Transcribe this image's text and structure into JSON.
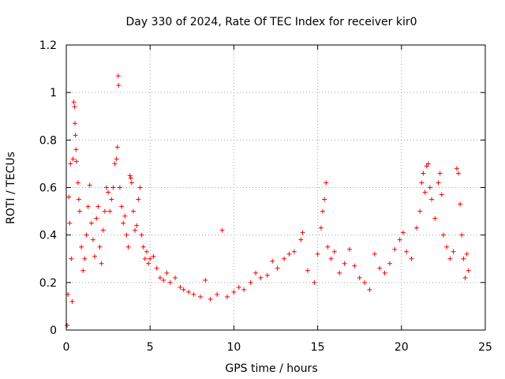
{
  "chart_data": {
    "type": "scatter",
    "title": "Day 330 of 2024, Rate Of TEC Index for receiver kir0",
    "xlabel": "GPS time / hours",
    "ylabel": "ROTI / TECUs",
    "xlim": [
      0,
      25
    ],
    "ylim": [
      0,
      1.2
    ],
    "xticks": [
      0,
      5,
      10,
      15,
      20,
      25
    ],
    "xtick_labels": [
      "0",
      "5",
      "10",
      "15",
      "20",
      "25"
    ],
    "yticks": [
      0,
      0.2,
      0.4,
      0.6,
      0.8,
      1,
      1.2
    ],
    "ytick_labels": [
      "0",
      "0.2",
      "0.4",
      "0.6",
      "0.8",
      "1",
      "1.2"
    ],
    "grid": true,
    "marker": "+",
    "series": [
      {
        "color": "#ff0000",
        "points": [
          [
            0.05,
            0.02
          ],
          [
            0.1,
            0.15
          ],
          [
            0.15,
            0.56
          ],
          [
            0.2,
            0.45
          ],
          [
            0.25,
            0.7
          ],
          [
            0.3,
            0.3
          ],
          [
            0.35,
            0.12
          ],
          [
            0.4,
            0.72
          ],
          [
            0.45,
            0.96
          ],
          [
            0.5,
            0.94
          ],
          [
            0.52,
            0.87
          ],
          [
            0.55,
            0.82
          ],
          [
            0.58,
            0.76
          ],
          [
            0.6,
            0.71
          ],
          [
            0.7,
            0.62
          ],
          [
            0.75,
            0.55
          ],
          [
            0.8,
            0.5
          ],
          [
            0.9,
            0.35
          ],
          [
            1.0,
            0.25
          ],
          [
            1.1,
            0.3
          ],
          [
            1.2,
            0.4
          ],
          [
            1.3,
            0.52
          ],
          [
            1.4,
            0.61
          ],
          [
            1.5,
            0.45
          ],
          [
            1.6,
            0.38
          ],
          [
            1.7,
            0.31
          ],
          [
            1.8,
            0.47
          ],
          [
            1.9,
            0.52
          ],
          [
            2.0,
            0.35
          ],
          [
            2.1,
            0.28
          ],
          [
            2.2,
            0.42
          ],
          [
            2.3,
            0.5
          ],
          [
            2.4,
            0.6
          ],
          [
            2.5,
            0.58
          ],
          [
            2.6,
            0.5
          ],
          [
            2.7,
            0.55
          ],
          [
            2.8,
            0.6
          ],
          [
            2.9,
            0.7
          ],
          [
            3.0,
            0.72
          ],
          [
            3.05,
            0.77
          ],
          [
            3.1,
            1.07
          ],
          [
            3.12,
            1.03
          ],
          [
            3.2,
            0.6
          ],
          [
            3.3,
            0.52
          ],
          [
            3.4,
            0.45
          ],
          [
            3.5,
            0.48
          ],
          [
            3.6,
            0.4
          ],
          [
            3.7,
            0.35
          ],
          [
            3.8,
            0.65
          ],
          [
            3.85,
            0.64
          ],
          [
            3.9,
            0.62
          ],
          [
            4.0,
            0.5
          ],
          [
            4.1,
            0.42
          ],
          [
            4.2,
            0.44
          ],
          [
            4.3,
            0.55
          ],
          [
            4.4,
            0.6
          ],
          [
            4.5,
            0.4
          ],
          [
            4.6,
            0.35
          ],
          [
            4.7,
            0.3
          ],
          [
            4.8,
            0.33
          ],
          [
            4.9,
            0.28
          ],
          [
            5.0,
            0.3
          ],
          [
            5.2,
            0.31
          ],
          [
            5.4,
            0.26
          ],
          [
            5.6,
            0.22
          ],
          [
            5.8,
            0.21
          ],
          [
            6.0,
            0.24
          ],
          [
            6.2,
            0.2
          ],
          [
            6.5,
            0.22
          ],
          [
            6.8,
            0.18
          ],
          [
            7.0,
            0.17
          ],
          [
            7.3,
            0.16
          ],
          [
            7.6,
            0.15
          ],
          [
            8.0,
            0.14
          ],
          [
            8.3,
            0.21
          ],
          [
            8.6,
            0.13
          ],
          [
            9.0,
            0.15
          ],
          [
            9.3,
            0.42
          ],
          [
            9.6,
            0.14
          ],
          [
            10.0,
            0.16
          ],
          [
            10.3,
            0.18
          ],
          [
            10.6,
            0.17
          ],
          [
            11.0,
            0.2
          ],
          [
            11.3,
            0.24
          ],
          [
            11.6,
            0.22
          ],
          [
            12.0,
            0.23
          ],
          [
            12.3,
            0.29
          ],
          [
            12.6,
            0.26
          ],
          [
            13.0,
            0.3
          ],
          [
            13.3,
            0.32
          ],
          [
            13.6,
            0.33
          ],
          [
            14.0,
            0.38
          ],
          [
            14.1,
            0.41
          ],
          [
            14.4,
            0.25
          ],
          [
            14.8,
            0.2
          ],
          [
            15.0,
            0.32
          ],
          [
            15.2,
            0.43
          ],
          [
            15.3,
            0.5
          ],
          [
            15.4,
            0.55
          ],
          [
            15.5,
            0.62
          ],
          [
            15.6,
            0.35
          ],
          [
            15.8,
            0.3
          ],
          [
            16.0,
            0.33
          ],
          [
            16.3,
            0.24
          ],
          [
            16.6,
            0.28
          ],
          [
            16.9,
            0.34
          ],
          [
            17.2,
            0.27
          ],
          [
            17.5,
            0.22
          ],
          [
            17.8,
            0.2
          ],
          [
            18.1,
            0.17
          ],
          [
            18.4,
            0.32
          ],
          [
            18.7,
            0.26
          ],
          [
            19.0,
            0.24
          ],
          [
            19.3,
            0.28
          ],
          [
            19.6,
            0.34
          ],
          [
            19.9,
            0.38
          ],
          [
            20.1,
            0.41
          ],
          [
            20.3,
            0.33
          ],
          [
            20.6,
            0.3
          ],
          [
            20.9,
            0.43
          ],
          [
            21.1,
            0.5
          ],
          [
            21.2,
            0.62
          ],
          [
            21.3,
            0.66
          ],
          [
            21.4,
            0.58
          ],
          [
            21.5,
            0.69
          ],
          [
            21.6,
            0.7
          ],
          [
            21.7,
            0.6
          ],
          [
            21.8,
            0.55
          ],
          [
            22.0,
            0.47
          ],
          [
            22.2,
            0.62
          ],
          [
            22.3,
            0.66
          ],
          [
            22.4,
            0.57
          ],
          [
            22.5,
            0.4
          ],
          [
            22.7,
            0.35
          ],
          [
            22.9,
            0.3
          ],
          [
            23.1,
            0.33
          ],
          [
            23.3,
            0.68
          ],
          [
            23.4,
            0.66
          ],
          [
            23.5,
            0.53
          ],
          [
            23.6,
            0.4
          ],
          [
            23.7,
            0.3
          ],
          [
            23.8,
            0.22
          ],
          [
            23.9,
            0.32
          ],
          [
            24.0,
            0.25
          ]
        ]
      }
    ]
  }
}
